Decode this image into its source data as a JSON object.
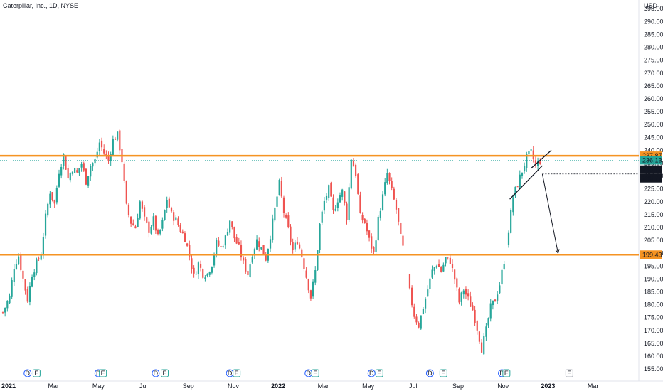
{
  "chart_data": {
    "type": "candlestick",
    "title": "Caterpillar, Inc., 1D, NYSE",
    "currency": "USD",
    "y_ticks": [
      155,
      160,
      165,
      170,
      175,
      180,
      185,
      190,
      195,
      200,
      205,
      210,
      215,
      220,
      225,
      230,
      235,
      240,
      245,
      250,
      255,
      260,
      265,
      270,
      275,
      280,
      285,
      290,
      295
    ],
    "ylim": [
      152,
      297
    ],
    "x_labels": [
      {
        "t": 0,
        "label": "2021",
        "bold": true
      },
      {
        "t": 2.0,
        "label": "Mar"
      },
      {
        "t": 4.0,
        "label": "May"
      },
      {
        "t": 6.0,
        "label": "Jul"
      },
      {
        "t": 8.0,
        "label": "Sep"
      },
      {
        "t": 10.0,
        "label": "Nov"
      },
      {
        "t": 12.0,
        "label": "2022",
        "bold": true
      },
      {
        "t": 14.0,
        "label": "Mar"
      },
      {
        "t": 16.0,
        "label": "May"
      },
      {
        "t": 18.0,
        "label": "Jul"
      },
      {
        "t": 20.0,
        "label": "Sep"
      },
      {
        "t": 22.0,
        "label": "Nov"
      },
      {
        "t": 24.0,
        "label": "2023",
        "bold": true
      },
      {
        "t": 26.0,
        "label": "Mar"
      }
    ],
    "horizontal_levels": [
      {
        "price": 237.87,
        "label": "237.87",
        "color": "#f59323"
      },
      {
        "price": 199.43,
        "label": "199.43",
        "color": "#f59323"
      }
    ],
    "last_price": {
      "price": 236.13,
      "label": "236.13",
      "color": "#26a69a"
    },
    "target_levels": [
      {
        "price": 230.79,
        "label": "230.79"
      },
      {
        "price": 230.79,
        "label": "230.79"
      }
    ],
    "path_points": [
      [
        0,
        177
      ],
      [
        0.3,
        183
      ],
      [
        0.5,
        195
      ],
      [
        0.7,
        199
      ],
      [
        0.9,
        190
      ],
      [
        1.1,
        182
      ],
      [
        1.3,
        192
      ],
      [
        1.5,
        196
      ],
      [
        1.7,
        200
      ],
      [
        1.9,
        214
      ],
      [
        2.1,
        224
      ],
      [
        2.3,
        219
      ],
      [
        2.5,
        232
      ],
      [
        2.7,
        238
      ],
      [
        2.9,
        229
      ],
      [
        3.1,
        233
      ],
      [
        3.3,
        231
      ],
      [
        3.5,
        235
      ],
      [
        3.7,
        228
      ],
      [
        3.9,
        234
      ],
      [
        4.1,
        236
      ],
      [
        4.3,
        243
      ],
      [
        4.5,
        239
      ],
      [
        4.7,
        236
      ],
      [
        4.9,
        244
      ],
      [
        5.1,
        246
      ],
      [
        5.3,
        236
      ],
      [
        5.5,
        218
      ],
      [
        5.7,
        212
      ],
      [
        5.9,
        210
      ],
      [
        6.1,
        220
      ],
      [
        6.3,
        213
      ],
      [
        6.5,
        209
      ],
      [
        6.7,
        213
      ],
      [
        6.9,
        206
      ],
      [
        7.1,
        212
      ],
      [
        7.3,
        221
      ],
      [
        7.5,
        215
      ],
      [
        7.7,
        213
      ],
      [
        7.9,
        209
      ],
      [
        8.1,
        206
      ],
      [
        8.3,
        199
      ],
      [
        8.5,
        191
      ],
      [
        8.7,
        196
      ],
      [
        8.9,
        192
      ],
      [
        9.1,
        192
      ],
      [
        9.3,
        196
      ],
      [
        9.5,
        204
      ],
      [
        9.7,
        202
      ],
      [
        9.9,
        206
      ],
      [
        10.1,
        213
      ],
      [
        10.3,
        206
      ],
      [
        10.5,
        202
      ],
      [
        10.7,
        196
      ],
      [
        10.9,
        192
      ],
      [
        11.1,
        200
      ],
      [
        11.3,
        205
      ],
      [
        11.5,
        202
      ],
      [
        11.7,
        198
      ],
      [
        11.9,
        207
      ],
      [
        12.1,
        217
      ],
      [
        12.3,
        227
      ],
      [
        12.5,
        216
      ],
      [
        12.7,
        209
      ],
      [
        12.9,
        201
      ],
      [
        13.1,
        205
      ],
      [
        13.3,
        199
      ],
      [
        13.5,
        191
      ],
      [
        13.7,
        183
      ],
      [
        13.9,
        193
      ],
      [
        14.1,
        211
      ],
      [
        14.3,
        220
      ],
      [
        14.5,
        225
      ],
      [
        14.7,
        216
      ],
      [
        14.9,
        221
      ],
      [
        15.1,
        224
      ],
      [
        15.3,
        214
      ],
      [
        15.5,
        237
      ],
      [
        15.7,
        231
      ],
      [
        15.9,
        214
      ],
      [
        16.1,
        212
      ],
      [
        16.3,
        205
      ],
      [
        16.5,
        200
      ],
      [
        16.7,
        213
      ],
      [
        16.9,
        222
      ],
      [
        17.1,
        231
      ],
      [
        17.3,
        224
      ],
      [
        17.5,
        217
      ],
      [
        17.7,
        206
      ],
      [
        17.9,
        198
      ],
      [
        18.1,
        185
      ],
      [
        18.3,
        176
      ],
      [
        18.5,
        172
      ],
      [
        18.7,
        179
      ],
      [
        18.9,
        186
      ],
      [
        19.1,
        193
      ],
      [
        19.3,
        196
      ],
      [
        19.5,
        193
      ],
      [
        19.7,
        198
      ],
      [
        19.9,
        197
      ],
      [
        20.1,
        190
      ],
      [
        20.3,
        181
      ],
      [
        20.5,
        186
      ],
      [
        20.7,
        182
      ],
      [
        20.9,
        178
      ],
      [
        21.1,
        171
      ],
      [
        21.3,
        163
      ],
      [
        21.5,
        170
      ],
      [
        21.7,
        179
      ],
      [
        21.9,
        182
      ],
      [
        22.1,
        188
      ],
      [
        22.3,
        197
      ],
      [
        22.5,
        209
      ],
      [
        22.7,
        222
      ],
      [
        22.9,
        227
      ],
      [
        23.1,
        232
      ],
      [
        23.3,
        237
      ],
      [
        23.5,
        239
      ],
      [
        23.7,
        234
      ],
      [
        23.9,
        236
      ]
    ],
    "gap_ranges": [
      [
        17.8,
        18.05
      ],
      [
        22.35,
        22.5
      ]
    ],
    "wedge": {
      "lower": [
        [
          22.55,
          221
        ],
        [
          24.0,
          234
        ]
      ],
      "upper": [
        [
          23.5,
          233
        ],
        [
          24.4,
          240
        ]
      ]
    },
    "arrow": {
      "from": [
        24.0,
        230.79
      ],
      "to": [
        24.7,
        200
      ]
    },
    "events_x": [
      1.1,
      1.5,
      4.25,
      4.45,
      6.8,
      7.2,
      10.1,
      10.4,
      13.6,
      13.9,
      16.4,
      16.75,
      19.0,
      19.6,
      22.2,
      22.4,
      25.2
    ],
    "event_labels": [
      "D",
      "E",
      "D",
      "E",
      "D",
      "E",
      "D",
      "E",
      "D",
      "E",
      "D",
      "E",
      "D",
      "E",
      "D",
      "E",
      "E"
    ],
    "colors": {
      "up": "#26a69a",
      "down": "#ef5350",
      "level": "#f59323",
      "axis_text": "#131722",
      "tag_dark": "#131722"
    }
  }
}
